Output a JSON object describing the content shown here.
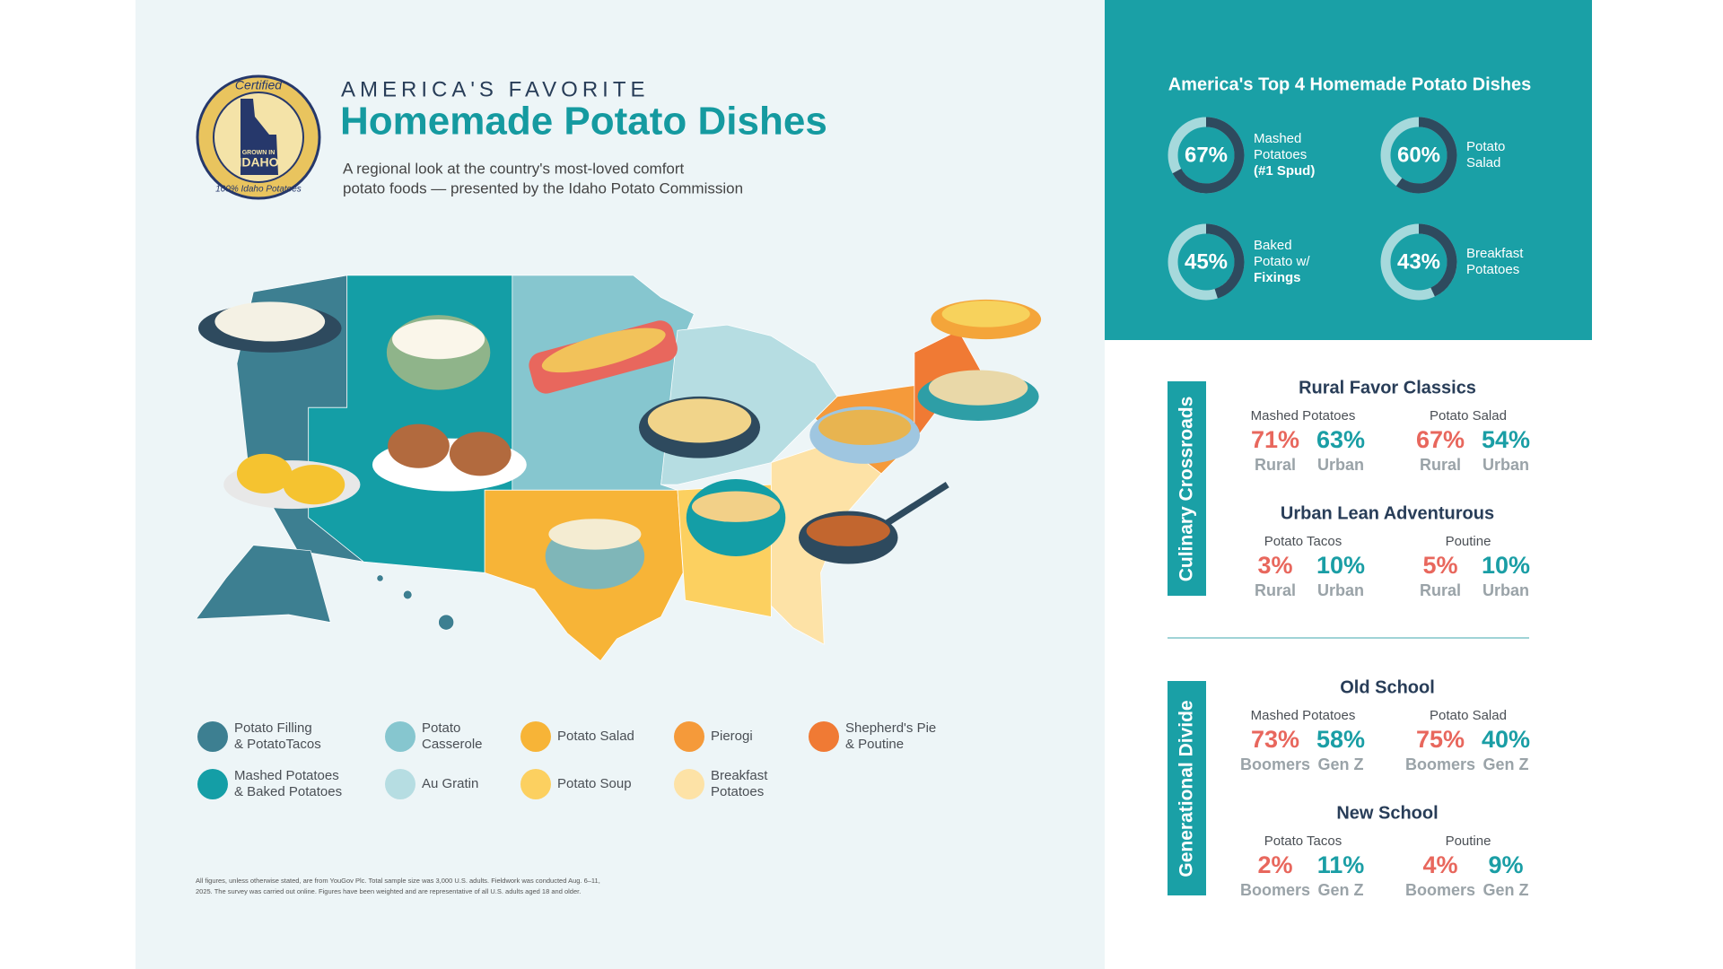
{
  "header": {
    "eyebrow": "AMERICA'S FAVORITE",
    "title": "Homemade Potato Dishes",
    "subtitle": [
      "A regional look at the country's most-loved comfort",
      "potato foods — presented by the Idaho Potato Commission"
    ],
    "logo": {
      "top": "Certified",
      "grown": "GROWN IN",
      "state": "IDAHO",
      "bottom": "100% Idaho Potatoes"
    }
  },
  "legend": [
    {
      "lines": [
        "Potato Filling",
        "& PotatoTacos"
      ],
      "color": "#3d7f91"
    },
    {
      "lines": [
        "Potato",
        "Casserole"
      ],
      "color": "#86c6cf"
    },
    {
      "lines": [
        "Potato Salad"
      ],
      "color": "#f7b437"
    },
    {
      "lines": [
        "Pierogi"
      ],
      "color": "#f59a3a"
    },
    {
      "lines": [
        "Shepherd's Pie",
        "& Poutine"
      ],
      "color": "#f07a34"
    },
    {
      "lines": [
        "Mashed Potatoes",
        "& Baked Potatoes"
      ],
      "color": "#149ea6"
    },
    {
      "lines": [
        "Au Gratin"
      ],
      "color": "#b6dde2"
    },
    {
      "lines": [
        "Potato Soup"
      ],
      "color": "#fcd060"
    },
    {
      "lines": [
        "Breakfast",
        "Potatoes"
      ],
      "color": "#fde2a6"
    }
  ],
  "footnote": [
    "All figures, unless otherwise stated, are from YouGov Plc. Total sample size was 3,000 U.S. adults. Fieldwork was conducted Aug. 6–11,",
    "2025. The survey was carried out online. Figures have been weighted and are representative of all U.S. adults aged 18 and older."
  ],
  "top4": {
    "title": "America's Top 4 Homemade Potato Dishes",
    "items": [
      {
        "value": 67,
        "label": "67%",
        "name": [
          "Mashed",
          "Potatoes",
          "(#1 Spud)"
        ]
      },
      {
        "value": 60,
        "label": "60%",
        "name": [
          "Potato",
          "Salad"
        ]
      },
      {
        "value": 45,
        "label": "45%",
        "name": [
          "Baked",
          "Potato w/",
          "Fixings"
        ]
      },
      {
        "value": 43,
        "label": "43%",
        "name": [
          "Breakfast",
          "Potatoes"
        ]
      }
    ]
  },
  "sections": [
    {
      "heading": "Culinary Crossroads",
      "groups": [
        {
          "title": "Rural Favor Classics",
          "items": [
            {
              "dish": "Mashed Potatoes",
              "stats": [
                {
                  "value": "71%",
                  "group": "Rural"
                },
                {
                  "value": "63%",
                  "group": "Urban"
                }
              ]
            },
            {
              "dish": "Potato Salad",
              "stats": [
                {
                  "value": "67%",
                  "group": "Rural"
                },
                {
                  "value": "54%",
                  "group": "Urban"
                }
              ]
            }
          ]
        },
        {
          "title": "Urban Lean Adventurous",
          "items": [
            {
              "dish": "Potato Tacos",
              "stats": [
                {
                  "value": "3%",
                  "group": "Rural"
                },
                {
                  "value": "10%",
                  "group": "Urban"
                }
              ]
            },
            {
              "dish": "Poutine",
              "stats": [
                {
                  "value": "5%",
                  "group": "Rural"
                },
                {
                  "value": "10%",
                  "group": "Urban"
                }
              ]
            }
          ]
        }
      ]
    },
    {
      "heading": "Generational Divide",
      "groups": [
        {
          "title": "Old School",
          "items": [
            {
              "dish": "Mashed Potatoes",
              "stats": [
                {
                  "value": "73%",
                  "group": "Boomers"
                },
                {
                  "value": "58%",
                  "group": "Gen Z"
                }
              ]
            },
            {
              "dish": "Potato Salad",
              "stats": [
                {
                  "value": "75%",
                  "group": "Boomers"
                },
                {
                  "value": "40%",
                  "group": "Gen Z"
                }
              ]
            }
          ]
        },
        {
          "title": "New School",
          "items": [
            {
              "dish": "Potato Tacos",
              "stats": [
                {
                  "value": "2%",
                  "group": "Boomers"
                },
                {
                  "value": "11%",
                  "group": "Gen Z"
                }
              ]
            },
            {
              "dish": "Poutine",
              "stats": [
                {
                  "value": "4%",
                  "group": "Boomers"
                },
                {
                  "value": "9%",
                  "group": "Gen Z"
                }
              ]
            }
          ]
        }
      ]
    }
  ]
}
